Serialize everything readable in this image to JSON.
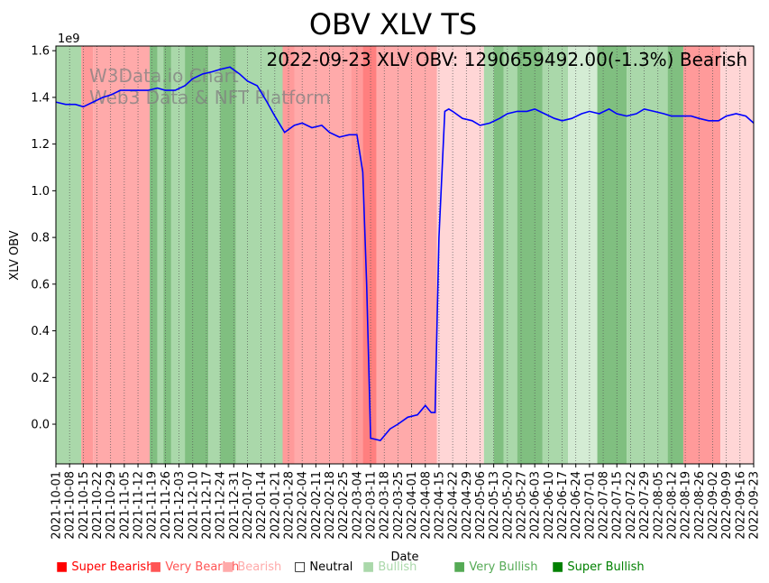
{
  "chart_data": {
    "type": "line",
    "title": "OBV XLV TS",
    "xlabel": "Date",
    "ylabel": "XLV OBV",
    "scale_label": "1e9",
    "annotation": "2022-09-23 XLV OBV: 1290659492.00(-1.3%) Bearish",
    "watermark": [
      "W3Data.io Chart",
      "Web3 Data & NFT Platform"
    ],
    "x_range": [
      "2021-10-01",
      "2022-09-23"
    ],
    "ylim": [
      -0.17,
      1.62
    ],
    "y_ticks": [
      0.0,
      0.2,
      0.4,
      0.6,
      0.8,
      1.0,
      1.2,
      1.4,
      1.6
    ],
    "y_tick_labels": [
      "0.0",
      "0.2",
      "0.4",
      "0.6",
      "0.8",
      "1.0",
      "1.2",
      "1.4",
      "1.6"
    ],
    "x_tick_labels": [
      "2021-10-01",
      "2021-10-08",
      "2021-10-15",
      "2021-10-22",
      "2021-10-29",
      "2021-11-05",
      "2021-11-12",
      "2021-11-19",
      "2021-11-26",
      "2021-12-03",
      "2021-12-10",
      "2021-12-17",
      "2021-12-24",
      "2021-12-31",
      "2022-01-07",
      "2022-01-14",
      "2022-01-21",
      "2022-01-28",
      "2022-02-04",
      "2022-02-11",
      "2022-02-18",
      "2022-02-25",
      "2022-03-04",
      "2022-03-11",
      "2022-03-18",
      "2022-03-25",
      "2022-04-01",
      "2022-04-08",
      "2022-04-15",
      "2022-04-22",
      "2022-04-29",
      "2022-05-06",
      "2022-05-13",
      "2022-05-20",
      "2022-05-27",
      "2022-06-03",
      "2022-06-10",
      "2022-06-17",
      "2022-06-24",
      "2022-07-01",
      "2022-07-08",
      "2022-07-15",
      "2022-07-22",
      "2022-07-29",
      "2022-08-05",
      "2022-08-12",
      "2022-08-19",
      "2022-08-26",
      "2022-09-02",
      "2022-09-09",
      "2022-09-16",
      "2022-09-23"
    ],
    "series": [
      {
        "color": "#0000ff",
        "x": [
          "2021-10-01",
          "2021-10-06",
          "2021-10-11",
          "2021-10-15",
          "2021-10-20",
          "2021-10-25",
          "2021-10-29",
          "2021-11-03",
          "2021-11-08",
          "2021-11-12",
          "2021-11-17",
          "2021-11-22",
          "2021-11-26",
          "2021-12-01",
          "2021-12-06",
          "2021-12-10",
          "2021-12-15",
          "2021-12-20",
          "2021-12-24",
          "2021-12-29",
          "2022-01-03",
          "2022-01-07",
          "2022-01-12",
          "2022-01-17",
          "2022-01-21",
          "2022-01-26",
          "2022-01-31",
          "2022-02-04",
          "2022-02-09",
          "2022-02-14",
          "2022-02-18",
          "2022-02-23",
          "2022-02-28",
          "2022-03-04",
          "2022-03-07",
          "2022-03-09",
          "2022-03-11",
          "2022-03-16",
          "2022-03-21",
          "2022-03-25",
          "2022-03-30",
          "2022-04-04",
          "2022-04-08",
          "2022-04-11",
          "2022-04-13",
          "2022-04-15",
          "2022-04-18",
          "2022-04-20",
          "2022-04-22",
          "2022-04-27",
          "2022-05-02",
          "2022-05-06",
          "2022-05-11",
          "2022-05-16",
          "2022-05-20",
          "2022-05-25",
          "2022-05-30",
          "2022-06-03",
          "2022-06-08",
          "2022-06-13",
          "2022-06-17",
          "2022-06-22",
          "2022-06-27",
          "2022-07-01",
          "2022-07-06",
          "2022-07-11",
          "2022-07-15",
          "2022-07-20",
          "2022-07-25",
          "2022-07-29",
          "2022-08-03",
          "2022-08-08",
          "2022-08-12",
          "2022-08-17",
          "2022-08-22",
          "2022-08-26",
          "2022-08-31",
          "2022-09-05",
          "2022-09-09",
          "2022-09-14",
          "2022-09-19",
          "2022-09-23"
        ],
        "y": [
          1.38,
          1.37,
          1.37,
          1.36,
          1.38,
          1.4,
          1.41,
          1.43,
          1.43,
          1.43,
          1.43,
          1.44,
          1.43,
          1.43,
          1.45,
          1.48,
          1.5,
          1.51,
          1.52,
          1.53,
          1.5,
          1.47,
          1.45,
          1.38,
          1.32,
          1.25,
          1.28,
          1.29,
          1.27,
          1.28,
          1.25,
          1.23,
          1.24,
          1.24,
          1.08,
          0.6,
          -0.06,
          -0.07,
          -0.02,
          0.0,
          0.03,
          0.04,
          0.08,
          0.05,
          0.05,
          0.8,
          1.34,
          1.35,
          1.34,
          1.31,
          1.3,
          1.28,
          1.29,
          1.31,
          1.33,
          1.34,
          1.34,
          1.35,
          1.33,
          1.31,
          1.3,
          1.31,
          1.33,
          1.34,
          1.33,
          1.35,
          1.33,
          1.32,
          1.33,
          1.35,
          1.34,
          1.33,
          1.32,
          1.32,
          1.32,
          1.31,
          1.3,
          1.3,
          1.32,
          1.33,
          1.32,
          1.29
        ]
      }
    ],
    "regimes": [
      [
        "2021-10-01",
        "2021-10-14",
        "bullish"
      ],
      [
        "2021-10-14",
        "2021-10-20",
        "very_bearish"
      ],
      [
        "2021-10-20",
        "2021-11-18",
        "bearish"
      ],
      [
        "2021-11-18",
        "2021-11-22",
        "very_bullish"
      ],
      [
        "2021-11-22",
        "2021-11-25",
        "bullish"
      ],
      [
        "2021-11-25",
        "2021-11-29",
        "very_bullish"
      ],
      [
        "2021-11-29",
        "2021-12-06",
        "bullish"
      ],
      [
        "2021-12-06",
        "2021-12-18",
        "very_bullish"
      ],
      [
        "2021-12-18",
        "2021-12-24",
        "bullish"
      ],
      [
        "2021-12-24",
        "2022-01-01",
        "very_bullish"
      ],
      [
        "2022-01-01",
        "2022-01-25",
        "bullish"
      ],
      [
        "2022-01-25",
        "2022-01-31",
        "very_bearish"
      ],
      [
        "2022-01-31",
        "2022-03-01",
        "bearish"
      ],
      [
        "2022-03-01",
        "2022-03-07",
        "very_bearish"
      ],
      [
        "2022-03-07",
        "2022-03-14",
        "super_bearish"
      ],
      [
        "2022-03-14",
        "2022-04-14",
        "bearish"
      ],
      [
        "2022-04-14",
        "2022-05-08",
        "light_bearish"
      ],
      [
        "2022-05-08",
        "2022-05-13",
        "bullish"
      ],
      [
        "2022-05-13",
        "2022-05-18",
        "very_bullish"
      ],
      [
        "2022-05-18",
        "2022-05-25",
        "bullish"
      ],
      [
        "2022-05-25",
        "2022-06-07",
        "very_bullish"
      ],
      [
        "2022-06-07",
        "2022-06-20",
        "bullish"
      ],
      [
        "2022-06-20",
        "2022-07-05",
        "light_bullish"
      ],
      [
        "2022-07-05",
        "2022-07-20",
        "very_bullish"
      ],
      [
        "2022-07-20",
        "2022-08-10",
        "bullish"
      ],
      [
        "2022-08-10",
        "2022-08-18",
        "very_bullish"
      ],
      [
        "2022-08-18",
        "2022-09-06",
        "very_bearish"
      ],
      [
        "2022-09-06",
        "2022-09-23",
        "light_bearish"
      ]
    ],
    "legend": [
      {
        "label": "Super Bearish",
        "color": "#ff0000"
      },
      {
        "label": "Very Bearish",
        "color": "#ff5555"
      },
      {
        "label": "Bearish",
        "color": "#ffaaaa"
      },
      {
        "label": "Neutral",
        "color": "#000000"
      },
      {
        "label": "Bullish",
        "color": "#aad8aa"
      },
      {
        "label": "Very Bullish",
        "color": "#55aa55"
      },
      {
        "label": "Super Bullish",
        "color": "#008000"
      }
    ],
    "legend_markers": [
      "■",
      "■",
      "■",
      "□",
      "■",
      "■",
      "■"
    ],
    "regime_colors": {
      "super_bearish": "#ff7f7f",
      "very_bearish": "#ff9a9a",
      "bearish": "#ffaaaa",
      "light_bearish": "#ffd6d6",
      "light_bullish": "#d4ecd4",
      "bullish": "#aad8aa",
      "very_bullish": "#80bf80"
    }
  }
}
